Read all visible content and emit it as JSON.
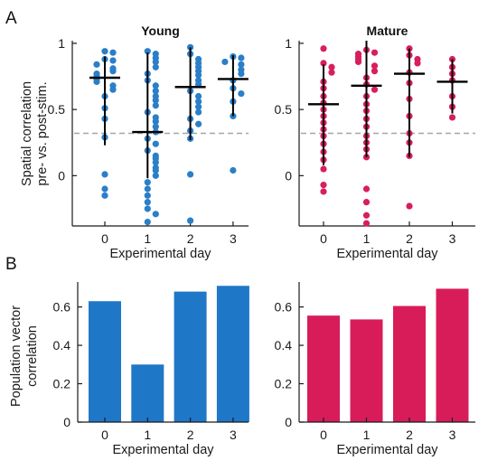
{
  "panel_labels": [
    "A",
    "B"
  ],
  "colors": {
    "young": "#2a7fc8",
    "mature": "#d81e5b",
    "young_bar": "#1f77c7",
    "mature_bar": "#d81c5a",
    "ref_line": "#a6a6a6",
    "axis": "#1a1a1a"
  },
  "chart_data": [
    {
      "type": "scatter",
      "title": "Young",
      "xlabel": "Experimental day",
      "ylabel": [
        "Spatial correlation",
        "pre- vs. post-stim."
      ],
      "x_ticks": [
        "0",
        "1",
        "2",
        "3"
      ],
      "y_ticks": [
        "0",
        "0.5",
        "1"
      ],
      "ylim": [
        -0.38,
        1.02
      ],
      "reference_line": 0.32,
      "grid": false,
      "series": [
        {
          "x": 0,
          "median": 0.74,
          "low": 0.23,
          "high": 0.9,
          "values": [
            0.94,
            0.93,
            0.88,
            0.87,
            0.84,
            0.81,
            0.79,
            0.77,
            0.75,
            0.73,
            0.71,
            0.68,
            0.65,
            0.6,
            0.51,
            0.43,
            0.29,
            0.01,
            -0.1,
            -0.15
          ]
        },
        {
          "x": 1,
          "median": 0.33,
          "low": -0.02,
          "high": 0.93,
          "values": [
            0.94,
            0.92,
            0.89,
            0.86,
            0.82,
            0.77,
            0.72,
            0.68,
            0.64,
            0.6,
            0.57,
            0.53,
            0.48,
            0.44,
            0.41,
            0.37,
            0.33,
            0.28,
            0.24,
            0.19,
            0.15,
            0.13,
            0.1,
            0.06,
            0.04,
            0.0,
            -0.05,
            -0.1,
            -0.15,
            -0.2,
            -0.25,
            -0.29,
            -0.35
          ]
        },
        {
          "x": 2,
          "median": 0.67,
          "low": 0.27,
          "high": 0.97,
          "values": [
            0.97,
            0.92,
            0.88,
            0.85,
            0.82,
            0.79,
            0.76,
            0.72,
            0.69,
            0.64,
            0.6,
            0.56,
            0.52,
            0.48,
            0.43,
            0.39,
            0.34,
            0.28,
            0.01,
            -0.34
          ]
        },
        {
          "x": 3,
          "median": 0.73,
          "low": 0.45,
          "high": 0.91,
          "values": [
            0.9,
            0.89,
            0.86,
            0.84,
            0.8,
            0.77,
            0.72,
            0.66,
            0.62,
            0.56,
            0.45,
            0.04
          ]
        }
      ]
    },
    {
      "type": "scatter",
      "title": "Mature",
      "xlabel": "Experimental day",
      "x_ticks": [
        "0",
        "1",
        "2",
        "3"
      ],
      "y_ticks": [
        "0",
        "0.5",
        "1"
      ],
      "ylim": [
        -0.38,
        1.02
      ],
      "reference_line": 0.32,
      "grid": false,
      "series": [
        {
          "x": 0,
          "median": 0.54,
          "low": 0.08,
          "high": 0.84,
          "values": [
            0.96,
            0.85,
            0.82,
            0.78,
            0.71,
            0.66,
            0.6,
            0.55,
            0.5,
            0.45,
            0.4,
            0.35,
            0.3,
            0.24,
            0.18,
            0.12,
            0.05,
            -0.07,
            -0.12
          ]
        },
        {
          "x": 1,
          "median": 0.68,
          "low": 0.14,
          "high": 1.02,
          "values": [
            0.95,
            0.93,
            0.92,
            0.9,
            0.88,
            0.86,
            0.83,
            0.79,
            0.74,
            0.69,
            0.65,
            0.6,
            0.54,
            0.49,
            0.43,
            0.37,
            0.3,
            0.25,
            0.2,
            0.14,
            -0.1,
            -0.2,
            -0.3,
            -0.36
          ]
        },
        {
          "x": 2,
          "median": 0.77,
          "low": 0.14,
          "high": 0.96,
          "values": [
            0.96,
            0.91,
            0.88,
            0.85,
            0.78,
            0.7,
            0.58,
            0.45,
            0.32,
            0.25,
            0.15,
            -0.23
          ]
        },
        {
          "x": 3,
          "median": 0.71,
          "low": 0.47,
          "high": 0.88,
          "values": [
            0.88,
            0.82,
            0.77,
            0.72,
            0.6,
            0.52,
            0.44
          ]
        }
      ]
    },
    {
      "type": "bar",
      "xlabel": "Experimental day",
      "ylabel": [
        "Population vector",
        "correlation"
      ],
      "categories": [
        "0",
        "1",
        "2",
        "3"
      ],
      "values": [
        0.63,
        0.3,
        0.68,
        0.71
      ],
      "y_ticks": [
        "0",
        "0.2",
        "0.4",
        "0.6"
      ],
      "ylim": [
        0,
        0.73
      ]
    },
    {
      "type": "bar",
      "xlabel": "Experimental day",
      "categories": [
        "0",
        "1",
        "2",
        "3"
      ],
      "values": [
        0.555,
        0.535,
        0.605,
        0.695
      ],
      "y_ticks": [
        "0",
        "0.2",
        "0.4",
        "0.6"
      ],
      "ylim": [
        0,
        0.73
      ]
    }
  ]
}
